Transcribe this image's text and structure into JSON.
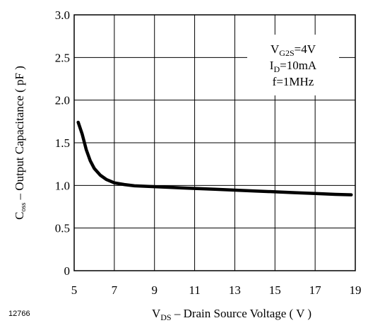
{
  "chart_data": {
    "type": "line",
    "figure_number": "12766",
    "xlabel": {
      "main": "V",
      "sub": "DS",
      "rest": " – Drain Source Voltage ( V )"
    },
    "ylabel": {
      "main": "C",
      "sub": "oss",
      "rest": " – Output Capacitance ( pF )"
    },
    "xlim": [
      5,
      19
    ],
    "ylim": [
      0,
      3.0
    ],
    "x_ticks": [
      "5",
      "7",
      "9",
      "11",
      "13",
      "15",
      "17",
      "19"
    ],
    "y_ticks": [
      "0",
      "0.5",
      "1.0",
      "1.5",
      "2.0",
      "2.5",
      "3.0"
    ],
    "grid": true,
    "conditions": [
      {
        "main": "V",
        "sub": "G2S",
        "rest": "=4V"
      },
      {
        "main": "I",
        "sub": "D",
        "rest": "=10mA"
      },
      {
        "main": "f=1MHz",
        "sub": "",
        "rest": ""
      }
    ],
    "series": [
      {
        "x": [
          5.2,
          5.4,
          5.6,
          5.8,
          6.0,
          6.3,
          6.6,
          7.0,
          7.5,
          8.0,
          9.0,
          10.0,
          11.0,
          12.0,
          13.0,
          14.0,
          15.0,
          16.0,
          17.0,
          18.0,
          18.8
        ],
        "y": [
          1.74,
          1.6,
          1.42,
          1.29,
          1.2,
          1.12,
          1.07,
          1.03,
          1.01,
          0.995,
          0.985,
          0.975,
          0.965,
          0.955,
          0.945,
          0.935,
          0.925,
          0.915,
          0.905,
          0.895,
          0.89
        ]
      }
    ]
  }
}
